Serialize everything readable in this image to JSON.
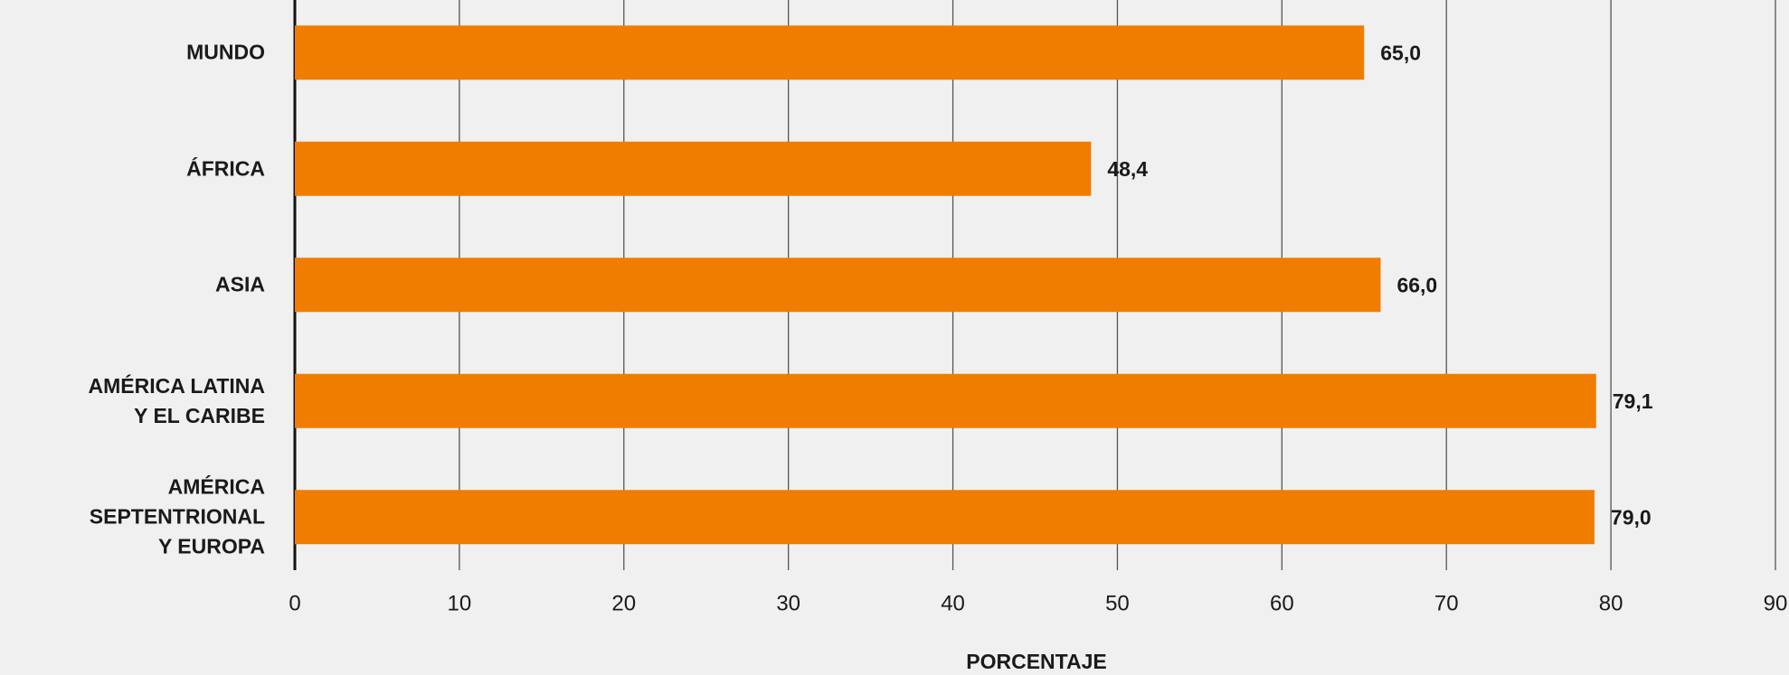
{
  "chart_data": {
    "type": "barh",
    "categories": [
      "MUNDO",
      "ÁFRICA",
      "ASIA",
      "AMÉRICA LATINA\nY EL CARIBE",
      "AMÉRICA SEPTENTRIONAL\nY EUROPA"
    ],
    "values": [
      65,
      48.4,
      66,
      79.1,
      79
    ],
    "value_labels": [
      "65,0",
      "48,4",
      "66,0",
      "79,1",
      "79,0"
    ],
    "color": "#f07d00",
    "xlim": [
      0,
      90
    ],
    "xticks": [
      0,
      10,
      20,
      30,
      40,
      50,
      60,
      70,
      80,
      90
    ],
    "xlabel": "PORCENTAJE",
    "grid": true
  }
}
